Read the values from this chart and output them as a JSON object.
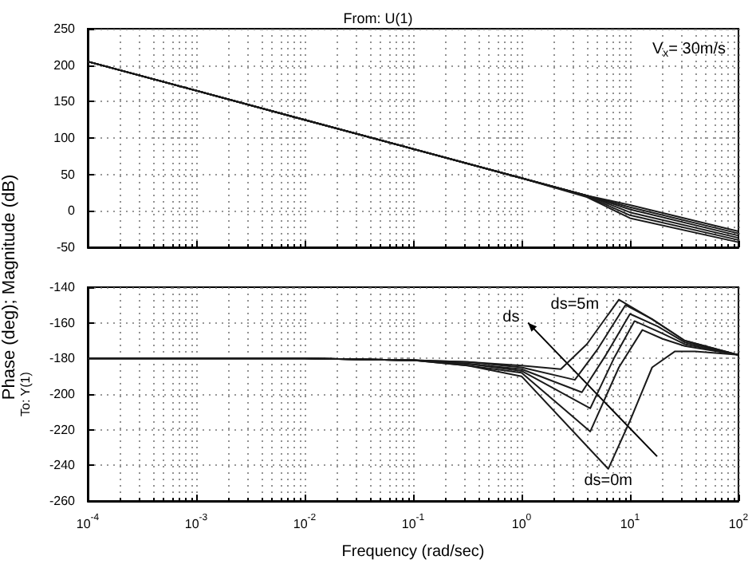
{
  "chart_data": [
    {
      "type": "line",
      "title": "From: U(1)",
      "ylabel": "Phase (deg); Magnitude (dB)",
      "annotations": [
        "V$_{x}$= 30m/s"
      ],
      "log": "x",
      "grid": true,
      "tick_labels": "y",
      "xlim": [
        0.0001,
        100
      ],
      "xticks": [
        {
          "value": 0.0001,
          "label": null
        },
        {
          "value": 0.001,
          "label": null
        },
        {
          "value": 0.01,
          "label": null
        },
        {
          "value": 0.1,
          "label": null
        },
        {
          "value": 1,
          "label": null
        },
        {
          "value": 10,
          "label": null
        },
        {
          "value": 100,
          "label": null
        }
      ],
      "ylim": [
        -50,
        250
      ],
      "yticks": [
        -50,
        0,
        50,
        100,
        150,
        200,
        250
      ],
      "series": [
        {
          "color": "#1a1a1a",
          "x": [
            0.0001,
            0.01,
            1,
            4,
            10,
            100
          ],
          "values": [
            205,
            125,
            45,
            21,
            8,
            -28
          ]
        },
        {
          "color": "#1a1a1a",
          "x": [
            0.0001,
            0.01,
            1,
            4,
            10,
            100
          ],
          "values": [
            205,
            125,
            45,
            21,
            5,
            -31
          ]
        },
        {
          "color": "#1a1a1a",
          "x": [
            0.0001,
            0.01,
            1,
            4,
            10,
            100
          ],
          "values": [
            205,
            125,
            45,
            21,
            2,
            -34
          ]
        },
        {
          "color": "#1a1a1a",
          "x": [
            0.0001,
            0.01,
            1,
            4,
            10,
            100
          ],
          "values": [
            205,
            125,
            45,
            21,
            -2,
            -37
          ]
        },
        {
          "color": "#1a1a1a",
          "x": [
            0.0001,
            0.01,
            1,
            4,
            10,
            100
          ],
          "values": [
            205,
            125,
            45,
            20,
            -6,
            -40
          ]
        },
        {
          "color": "#1a1a1a",
          "x": [
            0.0001,
            0.01,
            1,
            4,
            10,
            100
          ],
          "values": [
            205,
            125,
            45,
            19,
            -10,
            -43
          ]
        }
      ]
    },
    {
      "type": "line",
      "xlabel": "Frequency (rad/sec)",
      "ylabel": "To: Y(1)",
      "annotations": [
        {
          "text": "ds=5m",
          "x": 3.1,
          "y": -150
        },
        {
          "text": "ds",
          "x": 0.8,
          "y": -157
        },
        {
          "text": "ds=0m",
          "x": 6.3,
          "y": -249
        }
      ],
      "log": "x",
      "grid": true,
      "xlim": [
        0.0001,
        100
      ],
      "xticks": [
        {
          "value": 0.0001,
          "label": "10$^{-4}$"
        },
        {
          "value": 0.001,
          "label": "10$^{-3}$"
        },
        {
          "value": 0.01,
          "label": "10$^{-2}$"
        },
        {
          "value": 0.1,
          "label": "10$^{-1}$"
        },
        {
          "value": 1,
          "label": "10$^{0}$"
        },
        {
          "value": 10,
          "label": "10$^{1}$"
        },
        {
          "value": 100,
          "label": "10$^{2}$"
        }
      ],
      "ylim": [
        -260,
        -140
      ],
      "yticks": [
        -260,
        -240,
        -220,
        -200,
        -180,
        -160,
        -140
      ],
      "series": [
        {
          "color": "#1a1a1a",
          "x": [
            0.0001,
            0.01,
            0.1,
            0.32,
            1,
            2.3,
            4,
            7.9,
            16,
            32,
            100
          ],
          "values": [
            -180,
            -180,
            -181,
            -182,
            -184,
            -186,
            -172,
            -147,
            -158,
            -170,
            -178
          ]
        },
        {
          "color": "#1a1a1a",
          "x": [
            0.0001,
            0.01,
            0.1,
            0.32,
            1,
            3.1,
            5,
            9.1,
            16,
            32,
            100
          ],
          "values": [
            -180,
            -180,
            -181,
            -182,
            -185,
            -192,
            -175,
            -150,
            -158,
            -170,
            -178
          ]
        },
        {
          "color": "#1a1a1a",
          "x": [
            0.0001,
            0.01,
            0.1,
            0.32,
            1,
            3.6,
            6,
            10,
            18,
            32,
            100
          ],
          "values": [
            -180,
            -180,
            -181,
            -183,
            -186,
            -199,
            -178,
            -155,
            -162,
            -171,
            -178
          ]
        },
        {
          "color": "#1a1a1a",
          "x": [
            0.0001,
            0.01,
            0.1,
            0.32,
            1,
            4.3,
            7.1,
            11,
            20,
            32,
            100
          ],
          "values": [
            -180,
            -180,
            -181,
            -183,
            -187,
            -208,
            -180,
            -159,
            -166,
            -172,
            -178
          ]
        },
        {
          "color": "#1a1a1a",
          "x": [
            0.0001,
            0.01,
            0.1,
            0.32,
            1,
            4.3,
            7.9,
            13,
            20,
            32,
            100
          ],
          "values": [
            -180,
            -180,
            -181,
            -184,
            -188,
            -221,
            -185,
            -164,
            -169,
            -173,
            -178
          ]
        },
        {
          "color": "#1a1a1a",
          "x": [
            0.0001,
            0.01,
            0.1,
            0.32,
            1,
            6.3,
            10,
            16,
            26,
            40,
            100
          ],
          "values": [
            -180,
            -180,
            -181,
            -184,
            -190,
            -242,
            -215,
            -185,
            -176,
            -176,
            -178
          ]
        }
      ]
    }
  ]
}
